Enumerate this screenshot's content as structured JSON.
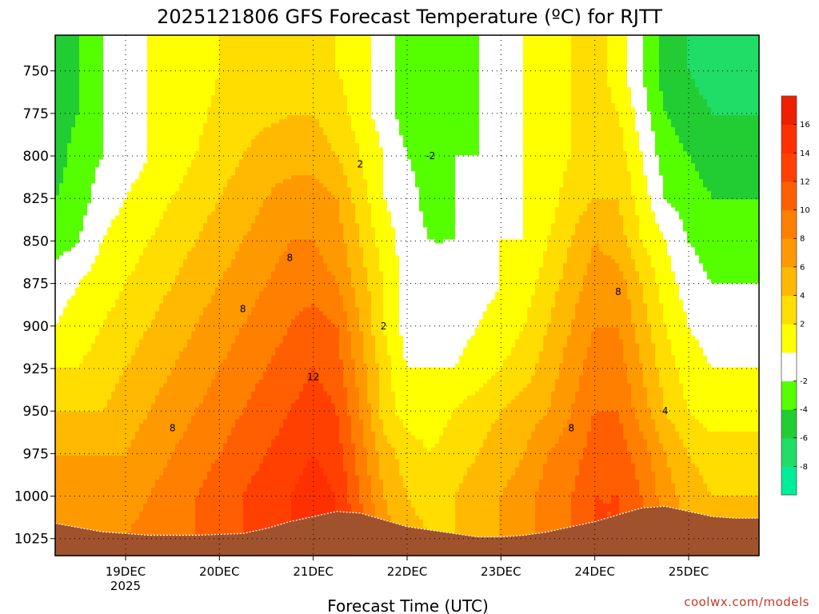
{
  "chart_data": {
    "type": "heatmap",
    "title": "2025121806 GFS Forecast Temperature (ºC) for RJTT",
    "xlabel": "Forecast Time (UTC)",
    "credit": "coolwx.com/models",
    "x_ticks": [
      {
        "label": "19DEC",
        "sublabel": "2025",
        "hour": 18
      },
      {
        "label": "20DEC",
        "sublabel": "",
        "hour": 42
      },
      {
        "label": "21DEC",
        "sublabel": "",
        "hour": 66
      },
      {
        "label": "22DEC",
        "sublabel": "",
        "hour": 90
      },
      {
        "label": "23DEC",
        "sublabel": "",
        "hour": 114
      },
      {
        "label": "24DEC",
        "sublabel": "",
        "hour": 138
      },
      {
        "label": "25DEC",
        "sublabel": "",
        "hour": 162
      }
    ],
    "xlim": [
      0,
      180
    ],
    "y_ticks": [
      "750",
      "775",
      "800",
      "825",
      "850",
      "875",
      "900",
      "925",
      "950",
      "975",
      "1000",
      "1025"
    ],
    "ylim": [
      729,
      1035
    ],
    "grid": true,
    "colorbar": {
      "levels": [
        -10,
        -8,
        -6,
        -4,
        -2,
        0,
        2,
        4,
        6,
        8,
        10,
        12,
        14,
        16,
        18
      ],
      "tick_labels": [
        "-8",
        "-6",
        "-4",
        "-2",
        "2",
        "4",
        "6",
        "8",
        "10",
        "12",
        "14",
        "16"
      ],
      "colors": [
        "#00ee99",
        "#1fdd66",
        "#22cc33",
        "#55ff00",
        "#ffffff",
        "#ffff00",
        "#ffdd00",
        "#ffb900",
        "#ff9900",
        "#ff7f00",
        "#ff5f00",
        "#ff4000",
        "#ff3000",
        "#ee1e00"
      ]
    },
    "ground_color": "#a0522d",
    "surface_pressure": {
      "hours": [
        0,
        12,
        24,
        36,
        48,
        54,
        60,
        66,
        72,
        78,
        84,
        90,
        96,
        102,
        108,
        114,
        120,
        126,
        132,
        138,
        144,
        150,
        156,
        162,
        168,
        174,
        180
      ],
      "hPa": [
        1016,
        1021,
        1023,
        1023,
        1022,
        1019,
        1015,
        1012,
        1009,
        1010,
        1014,
        1018,
        1020,
        1022,
        1024,
        1024,
        1023,
        1021,
        1018,
        1015,
        1011,
        1007,
        1006,
        1009,
        1012,
        1013,
        1013
      ]
    },
    "time_hours": [
      0,
      6,
      12,
      18,
      24,
      30,
      36,
      42,
      48,
      54,
      60,
      66,
      72,
      78,
      84,
      90,
      96,
      102,
      108,
      114,
      120,
      126,
      132,
      138,
      144,
      150,
      156,
      162,
      168,
      174,
      180
    ],
    "levels_hPa": [
      729,
      750,
      775,
      800,
      825,
      850,
      875,
      900,
      925,
      950,
      975,
      1000,
      1025,
      1035
    ],
    "temperature": [
      [
        -5,
        -4,
        -2,
        -1,
        0,
        0.5,
        1,
        2,
        3,
        3,
        3,
        3,
        2,
        1,
        -1,
        -3,
        -4,
        -3,
        -2,
        -1,
        0,
        1,
        2,
        3,
        1,
        -2,
        -5,
        -6,
        -7,
        -7,
        -7
      ],
      [
        -5,
        -4,
        -2,
        -1,
        0,
        0.5,
        1,
        2,
        3,
        3,
        3,
        3,
        2,
        1,
        -1,
        -3,
        -4,
        -3,
        -2,
        -1,
        0,
        1,
        2,
        3,
        1,
        -2,
        -5,
        -6,
        -7,
        -7,
        -7
      ],
      [
        -5,
        -4,
        -2,
        -1,
        0,
        1,
        1.5,
        2.5,
        3,
        3.5,
        4,
        4,
        3,
        1,
        -1,
        -3,
        -4,
        -3,
        -2,
        -1,
        0,
        1,
        2,
        3,
        2,
        -1,
        -4,
        -5,
        -6,
        -6,
        -6
      ],
      [
        -5,
        -3,
        -2,
        -1,
        0,
        1,
        2,
        3,
        4,
        5,
        5,
        5,
        4,
        2,
        0,
        -2,
        -3,
        -2,
        -2,
        -1,
        0,
        1,
        2,
        3,
        3,
        0,
        -3,
        -4,
        -5,
        -5,
        -5
      ],
      [
        -4,
        -3,
        -1,
        0,
        1,
        2,
        3,
        4,
        5,
        6,
        7,
        7,
        6,
        3,
        0,
        -1,
        -3,
        -2,
        -2,
        -1,
        0,
        1,
        3,
        4,
        4,
        1,
        -2,
        -3,
        -4,
        -4,
        -4
      ],
      [
        -3,
        -2,
        0,
        1,
        2,
        3,
        4,
        5,
        6,
        7,
        8,
        8,
        7,
        4,
        1,
        -1,
        -2,
        -2,
        -1,
        0,
        0,
        2,
        4,
        6,
        5,
        2,
        0,
        -2,
        -3,
        -3,
        -3
      ],
      [
        -1,
        0,
        1,
        2,
        3,
        4,
        5,
        6,
        7,
        8,
        9,
        9,
        8,
        5,
        2,
        -1,
        -2,
        -2,
        -1,
        0,
        1,
        3,
        5,
        7,
        7,
        4,
        1,
        -1,
        -2,
        -2,
        -2
      ],
      [
        0,
        1,
        2,
        3,
        4,
        5,
        6,
        7,
        8,
        9,
        10,
        11,
        10,
        6,
        2,
        -1,
        -2,
        -1,
        0,
        1,
        2,
        4,
        6,
        8,
        8,
        5,
        2,
        0,
        -1,
        -1,
        -1
      ],
      [
        2,
        2,
        3,
        4,
        5,
        6,
        7,
        8,
        9,
        10,
        11,
        12,
        11,
        7,
        3,
        0,
        0,
        0,
        1,
        2,
        3,
        5,
        7,
        9,
        9,
        6,
        3,
        1,
        0,
        0,
        0
      ],
      [
        4,
        4,
        4,
        5,
        6,
        7,
        8,
        9,
        10,
        11,
        12,
        13,
        12,
        8,
        3,
        1,
        1,
        2,
        3,
        4,
        5,
        6,
        8,
        10,
        10,
        7,
        4,
        2,
        1,
        1,
        1
      ],
      [
        6,
        6,
        6,
        6,
        7,
        8,
        9,
        10,
        11,
        12,
        13,
        14,
        13,
        9,
        5,
        3,
        2,
        3,
        4,
        5,
        6,
        8,
        9,
        11,
        11,
        9,
        6,
        4,
        3,
        3,
        3
      ],
      [
        7,
        7,
        7,
        7,
        8,
        9,
        10,
        11,
        12,
        13,
        14,
        15,
        14,
        10,
        6,
        4,
        3,
        4,
        5,
        6,
        7,
        9,
        10,
        12,
        12,
        10,
        7,
        5,
        4,
        4,
        4
      ],
      [
        8,
        8,
        8,
        8,
        9,
        9,
        10,
        11,
        12,
        13,
        14,
        15,
        14,
        11,
        7,
        5,
        4,
        4,
        5,
        6,
        7,
        9,
        10,
        12,
        12,
        10,
        8,
        6,
        5,
        5,
        5
      ],
      [
        8,
        8,
        8,
        8,
        9,
        9,
        10,
        11,
        12,
        13,
        14,
        15,
        14,
        11,
        7,
        5,
        4,
        4,
        5,
        6,
        7,
        9,
        10,
        12,
        12,
        10,
        8,
        6,
        5,
        5,
        5
      ]
    ]
  }
}
